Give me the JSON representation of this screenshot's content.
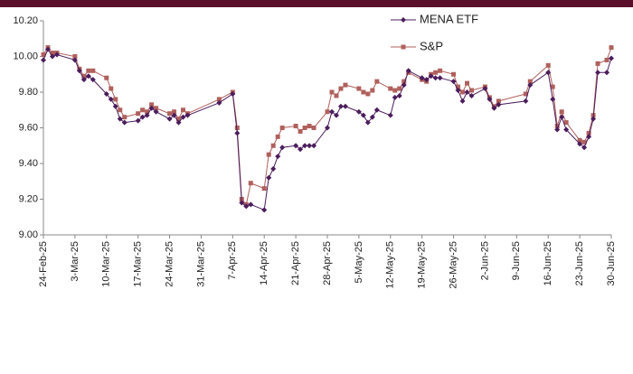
{
  "chart_data": {
    "type": "line",
    "x": [
      "2025-02-24",
      "2025-02-25",
      "2025-02-26",
      "2025-02-27",
      "2025-03-03",
      "2025-03-04",
      "2025-03-05",
      "2025-03-06",
      "2025-03-07",
      "2025-03-10",
      "2025-03-11",
      "2025-03-12",
      "2025-03-13",
      "2025-03-14",
      "2025-03-17",
      "2025-03-18",
      "2025-03-19",
      "2025-03-20",
      "2025-03-21",
      "2025-03-24",
      "2025-03-25",
      "2025-03-26",
      "2025-03-27",
      "2025-03-28",
      "2025-04-04",
      "2025-04-07",
      "2025-04-08",
      "2025-04-09",
      "2025-04-10",
      "2025-04-11",
      "2025-04-14",
      "2025-04-15",
      "2025-04-16",
      "2025-04-17",
      "2025-04-18",
      "2025-04-21",
      "2025-04-22",
      "2025-04-23",
      "2025-04-24",
      "2025-04-25",
      "2025-04-28",
      "2025-04-29",
      "2025-04-30",
      "2025-05-01",
      "2025-05-02",
      "2025-05-05",
      "2025-05-06",
      "2025-05-07",
      "2025-05-08",
      "2025-05-09",
      "2025-05-12",
      "2025-05-13",
      "2025-05-14",
      "2025-05-15",
      "2025-05-16",
      "2025-05-19",
      "2025-05-20",
      "2025-05-21",
      "2025-05-22",
      "2025-05-23",
      "2025-05-26",
      "2025-05-27",
      "2025-05-28",
      "2025-05-29",
      "2025-05-30",
      "2025-06-02",
      "2025-06-03",
      "2025-06-04",
      "2025-06-05",
      "2025-06-11",
      "2025-06-12",
      "2025-06-16",
      "2025-06-17",
      "2025-06-18",
      "2025-06-19",
      "2025-06-20",
      "2025-06-23",
      "2025-06-24",
      "2025-06-25",
      "2025-06-26",
      "2025-06-27",
      "2025-06-29",
      "2025-06-30"
    ],
    "series": [
      {
        "name": "MENA ETF",
        "color": "#4b1d5c",
        "marker": "diamond",
        "values": [
          9.98,
          10.04,
          10.0,
          10.01,
          9.98,
          9.92,
          9.87,
          9.89,
          9.87,
          9.79,
          9.76,
          9.72,
          9.65,
          9.63,
          9.64,
          9.66,
          9.67,
          9.71,
          9.69,
          9.65,
          9.67,
          9.63,
          9.66,
          9.67,
          9.74,
          9.79,
          9.57,
          9.18,
          9.16,
          9.17,
          9.14,
          9.32,
          9.37,
          9.44,
          9.49,
          9.5,
          9.48,
          9.5,
          9.5,
          9.5,
          9.6,
          9.69,
          9.67,
          9.72,
          9.72,
          9.69,
          9.67,
          9.63,
          9.66,
          9.7,
          9.67,
          9.77,
          9.78,
          9.84,
          9.92,
          9.88,
          9.87,
          9.89,
          9.88,
          9.88,
          9.86,
          9.81,
          9.75,
          9.8,
          9.78,
          9.82,
          9.76,
          9.71,
          9.73,
          9.75,
          9.84,
          9.91,
          9.76,
          9.59,
          9.66,
          9.59,
          9.51,
          9.49,
          9.55,
          9.65,
          9.91,
          9.91,
          9.99
        ]
      },
      {
        "name": "S&P",
        "color": "#b0605c",
        "marker": "square",
        "values": [
          10.01,
          10.05,
          10.02,
          10.02,
          10.0,
          9.93,
          9.89,
          9.92,
          9.92,
          9.88,
          9.82,
          9.76,
          9.7,
          9.66,
          9.68,
          9.7,
          9.69,
          9.73,
          9.71,
          9.68,
          9.69,
          9.65,
          9.7,
          9.68,
          9.76,
          9.8,
          9.6,
          9.2,
          9.17,
          9.29,
          9.26,
          9.45,
          9.5,
          9.55,
          9.6,
          9.61,
          9.58,
          9.6,
          9.61,
          9.6,
          9.69,
          9.8,
          9.78,
          9.82,
          9.84,
          9.82,
          9.8,
          9.79,
          9.81,
          9.86,
          9.82,
          9.81,
          9.82,
          9.86,
          9.91,
          9.87,
          9.86,
          9.9,
          9.91,
          9.92,
          9.9,
          9.83,
          9.8,
          9.85,
          9.81,
          9.83,
          9.77,
          9.72,
          9.75,
          9.79,
          9.86,
          9.95,
          9.83,
          9.61,
          9.69,
          9.63,
          9.53,
          9.52,
          9.57,
          9.67,
          9.96,
          9.98,
          10.05
        ]
      }
    ],
    "xlim": [
      "2025-02-24",
      "2025-06-30"
    ],
    "xticks": [
      {
        "value": "2025-02-24",
        "label": "24-Feb-25"
      },
      {
        "value": "2025-03-03",
        "label": "3-Mar-25"
      },
      {
        "value": "2025-03-10",
        "label": "10-Mar-25"
      },
      {
        "value": "2025-03-17",
        "label": "17-Mar-25"
      },
      {
        "value": "2025-03-24",
        "label": "24-Mar-25"
      },
      {
        "value": "2025-03-31",
        "label": "31-Mar-25"
      },
      {
        "value": "2025-04-07",
        "label": "7-Apr-25"
      },
      {
        "value": "2025-04-14",
        "label": "14-Apr-25"
      },
      {
        "value": "2025-04-21",
        "label": "21-Apr-25"
      },
      {
        "value": "2025-04-28",
        "label": "28-Apr-25"
      },
      {
        "value": "2025-05-05",
        "label": "5-May-25"
      },
      {
        "value": "2025-05-12",
        "label": "12-May-25"
      },
      {
        "value": "2025-05-19",
        "label": "19-May-25"
      },
      {
        "value": "2025-05-26",
        "label": "26-May-25"
      },
      {
        "value": "2025-06-02",
        "label": "2-Jun-25"
      },
      {
        "value": "2025-06-09",
        "label": "9-Jun-25"
      },
      {
        "value": "2025-06-16",
        "label": "16-Jun-25"
      },
      {
        "value": "2025-06-23",
        "label": "23-Jun-25"
      },
      {
        "value": "2025-06-30",
        "label": "30-Jun-25"
      }
    ],
    "ylim": [
      9.0,
      10.2
    ],
    "yticks": [
      {
        "value": 9.0,
        "label": "9.00"
      },
      {
        "value": 9.2,
        "label": "9.20"
      },
      {
        "value": 9.4,
        "label": "9.40"
      },
      {
        "value": 9.6,
        "label": "9.60"
      },
      {
        "value": 9.8,
        "label": "9.80"
      },
      {
        "value": 10.0,
        "label": "10.00"
      },
      {
        "value": 10.2,
        "label": "10.20"
      }
    ],
    "grid": false,
    "legend": "top-right"
  }
}
